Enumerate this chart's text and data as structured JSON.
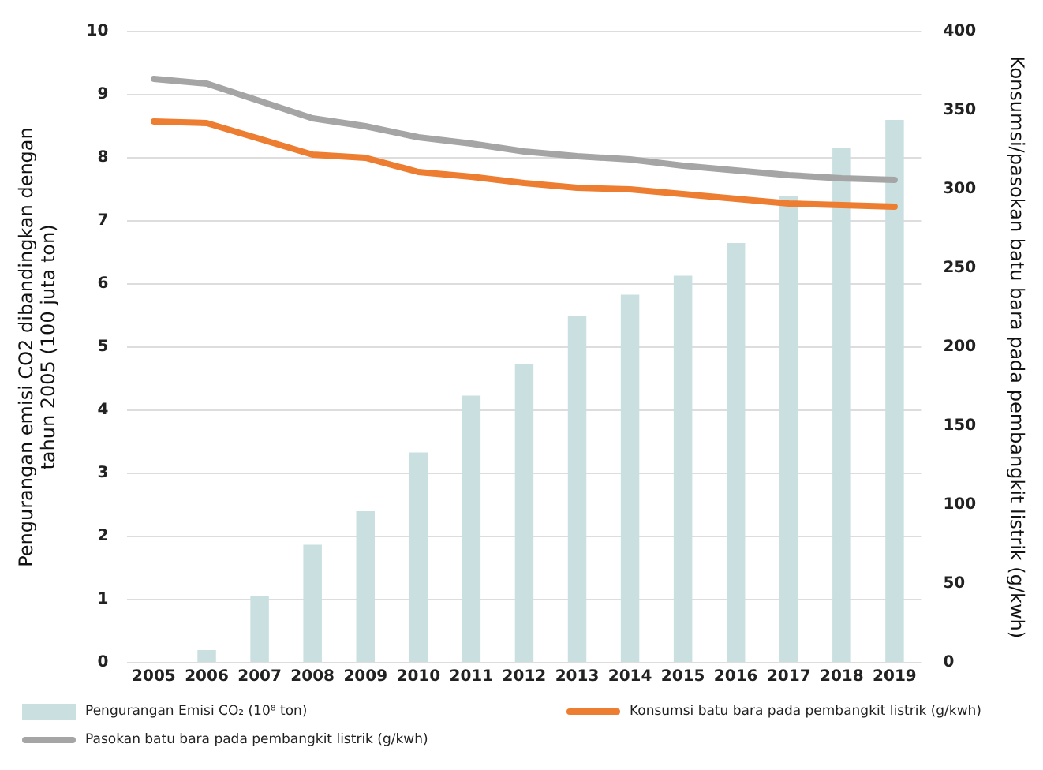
{
  "chart_data": {
    "type": "bar",
    "ylabel": "Pengurangan emisi CO2 dibandingkan dengan\ntahun 2005 (100 juta ton)",
    "y2label": "Konsumsi/pasokan batu bara pada pembangkit listrik (g/kwh)",
    "categories": [
      "2005",
      "2006",
      "2007",
      "2008",
      "2009",
      "2010",
      "2011",
      "2012",
      "2013",
      "2014",
      "2015",
      "2016",
      "2017",
      "2018",
      "2019"
    ],
    "series": [
      {
        "name": "Pengurangan Emisi CO₂ (10⁸ ton)",
        "color": "#c9dfe0",
        "values": [
          0,
          0.2,
          1.05,
          1.87,
          2.4,
          3.33,
          4.23,
          4.73,
          5.5,
          5.83,
          6.13,
          6.65,
          7.4,
          8.16,
          8.6
        ]
      },
      {
        "name": "Konsumsi batu bara pada pembangkit listrik (g/kwh)",
        "type": "line",
        "axis": "y2",
        "color": "#ed7d31",
        "values": [
          343,
          342,
          332,
          322,
          320,
          311,
          308,
          304,
          301,
          300,
          297,
          294,
          291,
          290,
          289
        ]
      },
      {
        "name": "Pasokan batu bara pada pembangkit listrik (g/kwh)",
        "type": "line",
        "axis": "y2",
        "color": "#a5a5a5",
        "values": [
          370,
          367,
          356,
          345,
          340,
          333,
          329,
          324,
          321,
          319,
          315,
          312,
          309,
          307,
          306
        ]
      }
    ],
    "ylim": [
      0,
      10
    ],
    "yticks": [
      0,
      1,
      2,
      3,
      4,
      5,
      6,
      7,
      8,
      9,
      10
    ],
    "y2lim": [
      0,
      400
    ],
    "y2ticks": [
      0,
      50,
      100,
      150,
      200,
      250,
      300,
      350,
      400
    ],
    "grid": "y",
    "legend": "bottom",
    "marker": "none"
  }
}
